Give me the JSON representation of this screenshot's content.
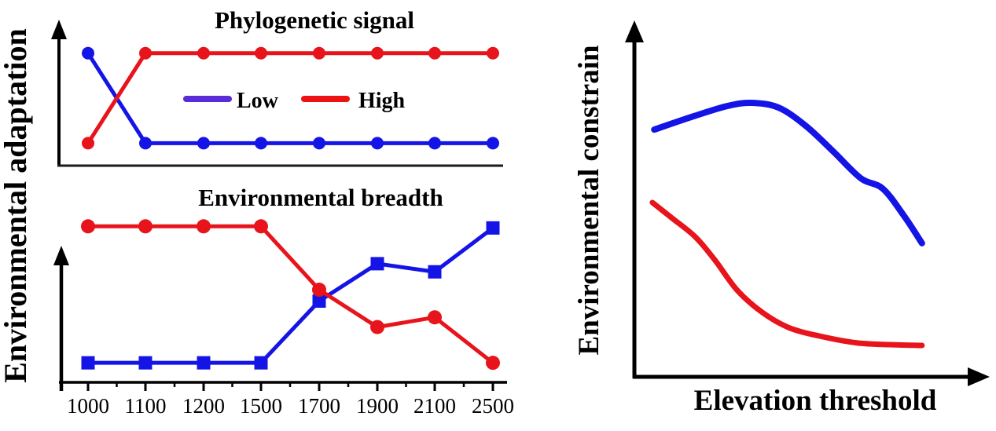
{
  "figure": {
    "background": "#ffffff",
    "left_panel": {
      "y_axis_label": "Environmental adaptation",
      "x_tick_labels": [
        "1000",
        "1100",
        "1200",
        "1500",
        "1700",
        "1900",
        "2100",
        "2500"
      ],
      "top_chart": {
        "title": "Phylogenetic signal",
        "legend": [
          {
            "label": "Low",
            "color": "#5a2bd9"
          },
          {
            "label": "High",
            "color": "#ee1111"
          }
        ]
      },
      "bottom_chart": {
        "title": "Environmental breadth"
      }
    },
    "right_panel": {
      "y_axis_label": "Environmental constrain",
      "x_axis_label": "Elevation threshold"
    }
  },
  "colors": {
    "series_blue": "#1414e6",
    "series_red": "#e8141c",
    "legend_low_swatch": "#5a2bd9",
    "legend_high_swatch": "#ee1111",
    "axis": "#000000"
  },
  "chart_data": [
    {
      "type": "line",
      "title": "Phylogenetic signal",
      "ylabel": "Environmental adaptation",
      "units": "qualitative relative scale (0-1), no numeric y axis shown",
      "x_categories": [
        1000,
        1100,
        1200,
        1500,
        1700,
        1900,
        2100,
        2500
      ],
      "legend_position": "inside center",
      "grid": false,
      "series": [
        {
          "name": "Low",
          "color": "#1414e6",
          "marker": "circle",
          "values": [
            0.85,
            0.17,
            0.17,
            0.17,
            0.17,
            0.17,
            0.17,
            0.17
          ]
        },
        {
          "name": "High",
          "color": "#e8141c",
          "marker": "circle",
          "values": [
            0.17,
            0.85,
            0.85,
            0.85,
            0.85,
            0.85,
            0.85,
            0.85
          ]
        }
      ]
    },
    {
      "type": "line",
      "title": "Environmental breadth",
      "ylabel": "Environmental adaptation",
      "units": "qualitative relative scale (0-1), no numeric y axis shown",
      "x_categories": [
        1000,
        1100,
        1200,
        1500,
        1700,
        1900,
        2100,
        2500
      ],
      "grid": false,
      "series": [
        {
          "name": "Low",
          "color": "#1414e6",
          "marker": "square",
          "values": [
            0.12,
            0.12,
            0.12,
            0.12,
            0.5,
            0.73,
            0.68,
            0.95
          ]
        },
        {
          "name": "High",
          "color": "#e8141c",
          "marker": "circle",
          "values": [
            0.96,
            0.96,
            0.96,
            0.96,
            0.57,
            0.34,
            0.4,
            0.12
          ]
        }
      ]
    },
    {
      "type": "line",
      "title": "",
      "xlabel": "Elevation threshold",
      "ylabel": "Environmental constrain",
      "units": "qualitative relative scale (0-1), conceptual curves, no ticks shown",
      "grid": false,
      "series": [
        {
          "name": "blue",
          "color": "#1414e6",
          "marker": "none",
          "points": [
            [
              0.056,
              0.692
            ],
            [
              0.169,
              0.73
            ],
            [
              0.262,
              0.758
            ],
            [
              0.329,
              0.767
            ],
            [
              0.407,
              0.754
            ],
            [
              0.484,
              0.703
            ],
            [
              0.562,
              0.631
            ],
            [
              0.64,
              0.556
            ],
            [
              0.702,
              0.527
            ],
            [
              0.762,
              0.451
            ],
            [
              0.813,
              0.374
            ]
          ]
        },
        {
          "name": "red",
          "color": "#e8141c",
          "marker": "none",
          "points": [
            [
              0.051,
              0.488
            ],
            [
              0.107,
              0.444
            ],
            [
              0.173,
              0.391
            ],
            [
              0.229,
              0.325
            ],
            [
              0.291,
              0.242
            ],
            [
              0.362,
              0.18
            ],
            [
              0.436,
              0.138
            ],
            [
              0.524,
              0.114
            ],
            [
              0.629,
              0.095
            ],
            [
              0.724,
              0.09
            ],
            [
              0.813,
              0.088
            ]
          ]
        }
      ]
    }
  ]
}
